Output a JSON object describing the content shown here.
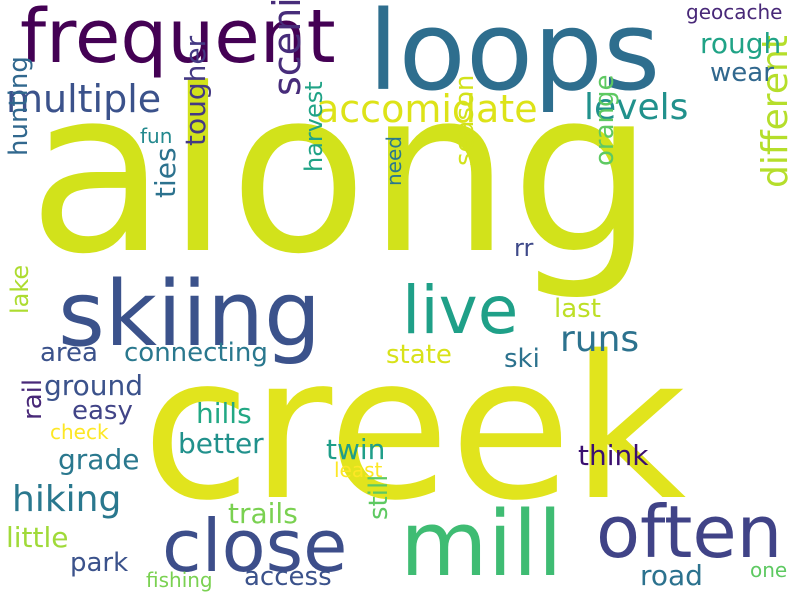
{
  "words": [
    {
      "text": "along",
      "color": "#d2e21b"
    },
    {
      "text": "creek",
      "color": "#e1e41d"
    },
    {
      "text": "loops",
      "color": "#2e6e8e"
    },
    {
      "text": "frequent",
      "color": "#440154"
    },
    {
      "text": "skiing",
      "color": "#3b528b"
    },
    {
      "text": "mill",
      "color": "#3fbc73"
    },
    {
      "text": "close",
      "color": "#3d4e8a"
    },
    {
      "text": "often",
      "color": "#404387"
    },
    {
      "text": "live",
      "color": "#1fa088"
    },
    {
      "text": "multiple",
      "color": "#3b528b"
    },
    {
      "text": "accomidate",
      "color": "#dde318"
    },
    {
      "text": "levels",
      "color": "#21918c"
    },
    {
      "text": "scenic",
      "color": "#472c7a"
    },
    {
      "text": "different",
      "color": "#b5de2b"
    },
    {
      "text": "runs",
      "color": "#2c728e"
    },
    {
      "text": "hiking",
      "color": "#2a788e"
    },
    {
      "text": "rough",
      "color": "#20a386"
    },
    {
      "text": "wear",
      "color": "#31688e"
    },
    {
      "text": "geocache",
      "color": "#482878"
    },
    {
      "text": "tougher",
      "color": "#443983"
    },
    {
      "text": "ties",
      "color": "#2c728e"
    },
    {
      "text": "harvest",
      "color": "#20a386"
    },
    {
      "text": "season",
      "color": "#d2e21b"
    },
    {
      "text": "orange",
      "color": "#5ec962"
    },
    {
      "text": "hunting",
      "color": "#31688e"
    },
    {
      "text": "fun",
      "color": "#23898e"
    },
    {
      "text": "need",
      "color": "#2a788e"
    },
    {
      "text": "rr",
      "color": "#3e4989"
    },
    {
      "text": "last",
      "color": "#bddf26"
    },
    {
      "text": "lake",
      "color": "#addc30"
    },
    {
      "text": "area",
      "color": "#3b528b"
    },
    {
      "text": "connecting",
      "color": "#2a788e"
    },
    {
      "text": "state",
      "color": "#d8e219"
    },
    {
      "text": "ski",
      "color": "#2c728e"
    },
    {
      "text": "ground",
      "color": "#3b528b"
    },
    {
      "text": "easy",
      "color": "#414487"
    },
    {
      "text": "rail",
      "color": "#482878"
    },
    {
      "text": "check",
      "color": "#fde725"
    },
    {
      "text": "hills",
      "color": "#22a884"
    },
    {
      "text": "better",
      "color": "#21918c"
    },
    {
      "text": "twin",
      "color": "#1f9e89"
    },
    {
      "text": "think",
      "color": "#3b0f70"
    },
    {
      "text": "grade",
      "color": "#2a788e"
    },
    {
      "text": "least",
      "color": "#fde725"
    },
    {
      "text": "trails",
      "color": "#7ad151"
    },
    {
      "text": "little",
      "color": "#a0da39"
    },
    {
      "text": "still",
      "color": "#5ec962"
    },
    {
      "text": "park",
      "color": "#3b528b"
    },
    {
      "text": "access",
      "color": "#3b528b"
    },
    {
      "text": "road",
      "color": "#2c728e"
    },
    {
      "text": "fishing",
      "color": "#7ad151"
    },
    {
      "text": "one",
      "color": "#5ec962"
    }
  ]
}
